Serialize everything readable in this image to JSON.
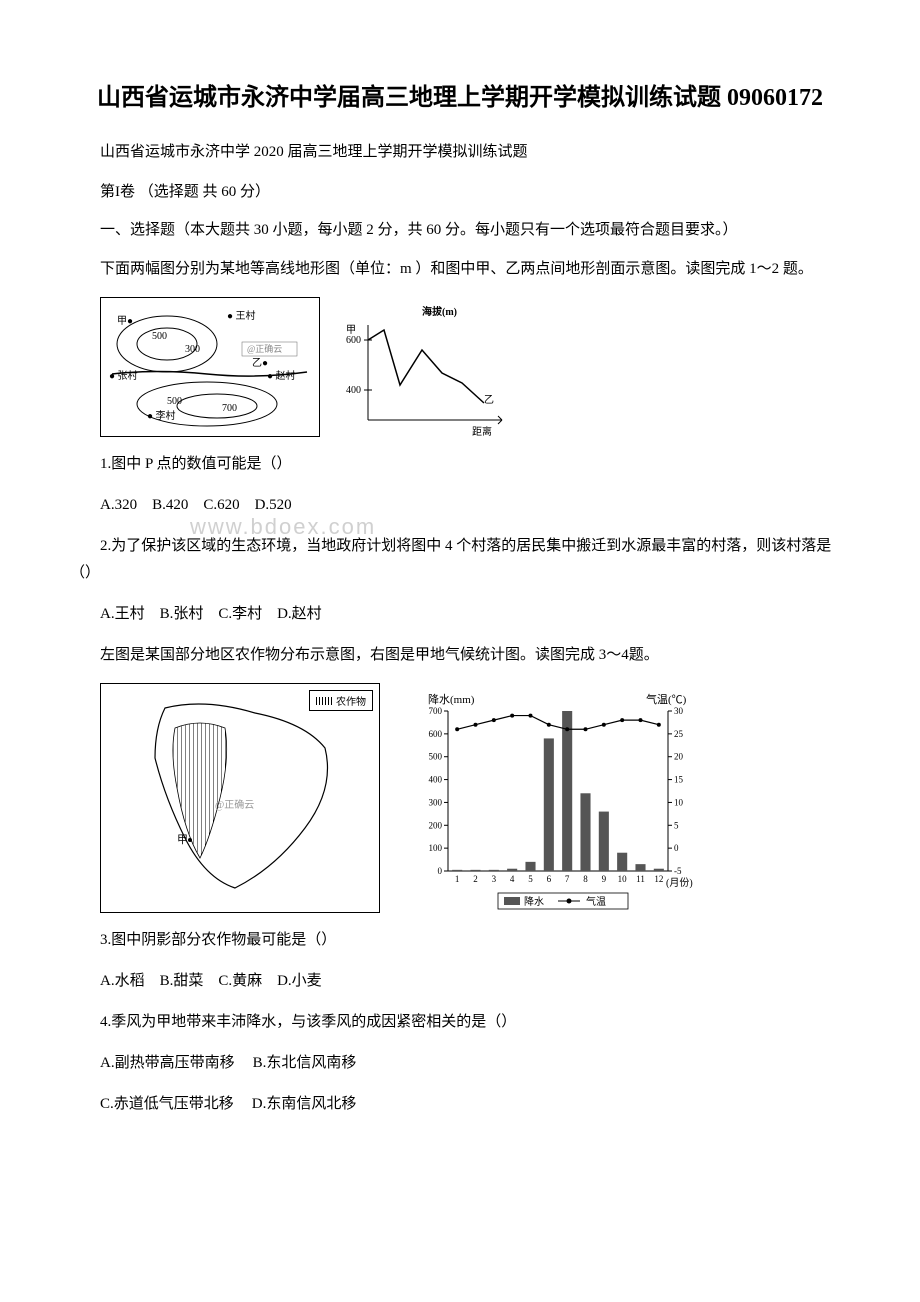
{
  "title": "山西省运城市永济中学届高三地理上学期开学模拟训练试题 09060172",
  "subtitle": "山西省运城市永济中学 2020 届高三地理上学期开学模拟训练试题",
  "section_header": "第I卷 （选择题 共 60 分）",
  "instructions": "一、选择题（本大题共 30 小题，每小题 2 分，共 60 分。每小题只有一个选项最符合题目要求。）",
  "passage1": "下面两幅图分别为某地等高线地形图（单位：m ）和图中甲、乙两点间地形剖面示意图。读图完成 1～2 题。",
  "q1": {
    "text": "1.图中 P 点的数值可能是（）",
    "options": "A.320　B.420　C.620　D.520"
  },
  "q2": {
    "text": "2.为了保护该区域的生态环境，当地政府计划将图中 4 个村落的居民集中搬迁到水源最丰富的村落，则该村落是（）",
    "options": "A.王村　B.张村　C.李村　D.赵村"
  },
  "passage2": "左图是某国部分地区农作物分布示意图，右图是甲地气候统计图。读图完成 3～4题。",
  "q3": {
    "text": "3.图中阴影部分农作物最可能是（）",
    "options": "A.水稻　B.甜菜　C.黄麻　D.小麦"
  },
  "q4": {
    "text": "4.季风为甲地带来丰沛降水，与该季风的成因紧密相关的是（）",
    "optA": "A.副热带高压带南移",
    "optB": "B.东北信风南移",
    "optC": "C.赤道低气压带北移",
    "optD": "D.东南信风北移"
  },
  "watermark": "www.bdoex.com",
  "contour_map": {
    "labels": [
      "甲",
      "王村",
      "500",
      "300",
      "正确云",
      "乙",
      "张村",
      "赵村",
      "500",
      "李村",
      "700"
    ],
    "villages": [
      "王村",
      "张村",
      "李村",
      "赵村"
    ],
    "contours": [
      300,
      500,
      700
    ]
  },
  "profile": {
    "title": "海拔(m)",
    "ylabels": [
      "甲",
      "600",
      "400"
    ],
    "xlabels": [
      "乙",
      "距离"
    ],
    "ylim": [
      300,
      700
    ],
    "points": [
      {
        "x": 0,
        "y": 600
      },
      {
        "x": 0.15,
        "y": 650
      },
      {
        "x": 0.3,
        "y": 420
      },
      {
        "x": 0.5,
        "y": 560
      },
      {
        "x": 0.7,
        "y": 480
      },
      {
        "x": 0.85,
        "y": 440
      },
      {
        "x": 1.0,
        "y": 380
      }
    ],
    "line_color": "#000000",
    "background_color": "#ffffff"
  },
  "india_map": {
    "legend": "农作物",
    "marker": "甲",
    "watermark_in": "正确云"
  },
  "climate": {
    "type": "combo",
    "precip_label": "降水(mm)",
    "temp_label": "气温(℃)",
    "x_label": "(月份)",
    "months": [
      1,
      2,
      3,
      4,
      5,
      6,
      7,
      8,
      9,
      10,
      11,
      12
    ],
    "precip_values": [
      5,
      5,
      5,
      10,
      40,
      580,
      700,
      340,
      260,
      80,
      30,
      10
    ],
    "temp_values": [
      26,
      27,
      28,
      29,
      29,
      27,
      26,
      26,
      27,
      28,
      28,
      27
    ],
    "precip_ylim": [
      0,
      700
    ],
    "precip_yticks": [
      0,
      100,
      200,
      300,
      400,
      500,
      600,
      700
    ],
    "temp_ylim": [
      -5,
      30
    ],
    "temp_yticks": [
      -5,
      0,
      5,
      10,
      15,
      20,
      25,
      30
    ],
    "bar_color": "#555555",
    "line_color": "#000000",
    "background_color": "#ffffff",
    "legend_precip": "降水",
    "legend_temp": "气温"
  }
}
